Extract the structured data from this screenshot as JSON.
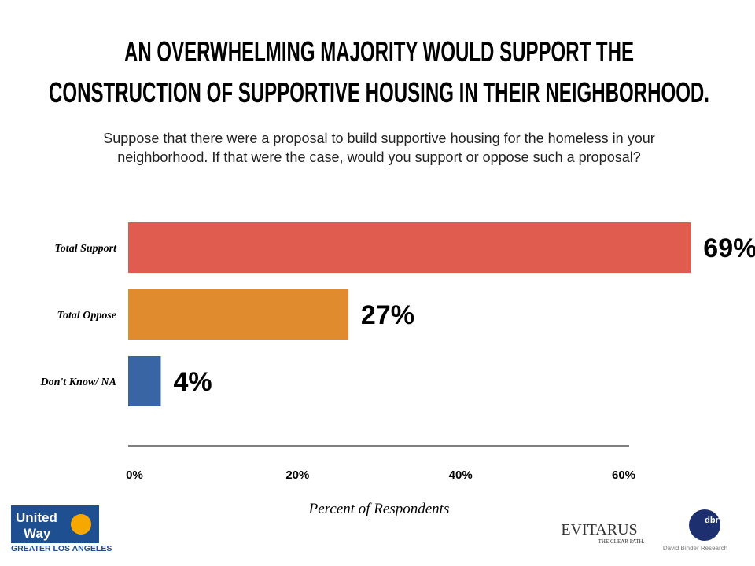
{
  "chart_data": {
    "type": "hbar",
    "title": [
      "AN OVERWHELMING MAJORITY WOULD SUPPORT THE",
      "CONSTRUCTION OF SUPPORTIVE HOUSING IN THEIR NEIGHBORHOOD."
    ],
    "subtitle": [
      "Suppose that there were a proposal to build supportive housing for the homeless in your",
      "neighborhood.  If that were the case, would you support or oppose such a proposal?"
    ],
    "categories": [
      "Total Support",
      "Total Oppose",
      "Don't Know/ NA"
    ],
    "values": [
      69,
      27,
      4
    ],
    "value_labels": [
      "69%",
      "27%",
      "4%"
    ],
    "colors": [
      "#e05c4e",
      "#e08b2e",
      "#3a65a5"
    ],
    "xlim": [
      0,
      60
    ],
    "xticks": [
      {
        "value": 0,
        "label": "0%"
      },
      {
        "value": 20,
        "label": "20%"
      },
      {
        "value": 40,
        "label": "40%"
      },
      {
        "value": 60,
        "label": "60%"
      }
    ],
    "xlabel": "Percent of Respondents"
  },
  "logos": {
    "united_way": [
      "United",
      "Way"
    ],
    "united_way_region": "GREATER LOS ANGELES",
    "evitarus": "EVITARUS",
    "evitarus_tagline": "THE CLEAR PATH.",
    "dbr": "dbr",
    "dbr_name": "David Binder Research"
  }
}
